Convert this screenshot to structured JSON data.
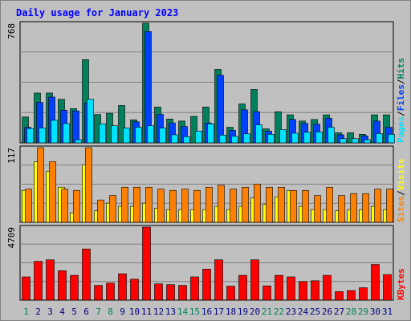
{
  "title": "Daily usage for January 2023",
  "colors": {
    "background": "#c0c0c0",
    "title": "#0000ff",
    "grid": "#808080",
    "hits": "#00805c",
    "files": "#0040ff",
    "pages": "#00e0ff",
    "visits": "#ffff00",
    "sites": "#ff8000",
    "kbytes": "#ff0000",
    "weekend_day": "#00805c",
    "weekday": "#000080"
  },
  "chart_data": [
    {
      "type": "bar",
      "panel": "hits-files-pages",
      "ymax_label": "768",
      "ymax": 768,
      "legend": {
        "pages": "Pages",
        "files": "Files",
        "hits": "Hits",
        "sep": "/"
      },
      "series": [
        {
          "name": "Hits",
          "values": [
            166,
            320,
            320,
            280,
            220,
            535,
            182,
            190,
            240,
            148,
            768,
            230,
            153,
            140,
            170,
            230,
            472,
            100,
            250,
            343,
            90,
            200,
            180,
            140,
            150,
            180,
            65,
            65,
            55,
            180,
            180
          ]
        },
        {
          "name": "Files",
          "values": [
            100,
            260,
            294,
            210,
            205,
            256,
            0,
            0,
            0,
            135,
            715,
            183,
            128,
            105,
            0,
            128,
            434,
            80,
            212,
            200,
            75,
            0,
            150,
            125,
            120,
            158,
            52,
            0,
            45,
            140,
            100
          ]
        },
        {
          "name": "Pages",
          "values": [
            92,
            96,
            145,
            124,
            20,
            280,
            122,
            110,
            95,
            100,
            110,
            95,
            52,
            40,
            75,
            122,
            50,
            42,
            58,
            116,
            55,
            85,
            62,
            68,
            70,
            100,
            27,
            27,
            20,
            60,
            55
          ]
        }
      ]
    },
    {
      "type": "bar",
      "panel": "visits-sites",
      "ymax_label": "117",
      "ymax": 117,
      "legend": {
        "sites": "Sites",
        "visits": "Visits",
        "sep": "/"
      },
      "series": [
        {
          "name": "Visits",
          "values": [
            50,
            95,
            80,
            55,
            15,
            90,
            18,
            30,
            25,
            25,
            30,
            22,
            20,
            20,
            20,
            20,
            25,
            20,
            25,
            38,
            28,
            40,
            50,
            25,
            20,
            20,
            18,
            20,
            20,
            25,
            20
          ]
        },
        {
          "name": "Sites",
          "values": [
            52,
            117,
            95,
            52,
            50,
            117,
            35,
            42,
            55,
            55,
            55,
            52,
            50,
            52,
            50,
            55,
            58,
            52,
            55,
            60,
            55,
            55,
            50,
            50,
            42,
            55,
            42,
            45,
            45,
            52,
            52
          ]
        }
      ]
    },
    {
      "type": "bar",
      "panel": "kbytes",
      "ymax_label": "4709",
      "ymax": 4709,
      "legend": {
        "kbytes": "KBytes"
      },
      "series": [
        {
          "name": "KBytes",
          "values": [
            1500,
            2500,
            2600,
            1900,
            1600,
            3300,
            950,
            1100,
            1700,
            1350,
            4709,
            1050,
            1000,
            950,
            1500,
            2000,
            2600,
            900,
            1600,
            2600,
            920,
            1600,
            1500,
            1200,
            1250,
            1600,
            550,
            620,
            800,
            2300,
            1650
          ]
        }
      ]
    }
  ],
  "x_labels": [
    "1",
    "2",
    "3",
    "4",
    "5",
    "6",
    "7",
    "8",
    "9",
    "10",
    "11",
    "12",
    "13",
    "14",
    "15",
    "16",
    "17",
    "18",
    "19",
    "20",
    "21",
    "22",
    "23",
    "24",
    "25",
    "26",
    "27",
    "28",
    "29",
    "30",
    "31"
  ],
  "weekend_days": [
    1,
    7,
    8,
    14,
    15,
    21,
    22,
    28,
    29
  ]
}
